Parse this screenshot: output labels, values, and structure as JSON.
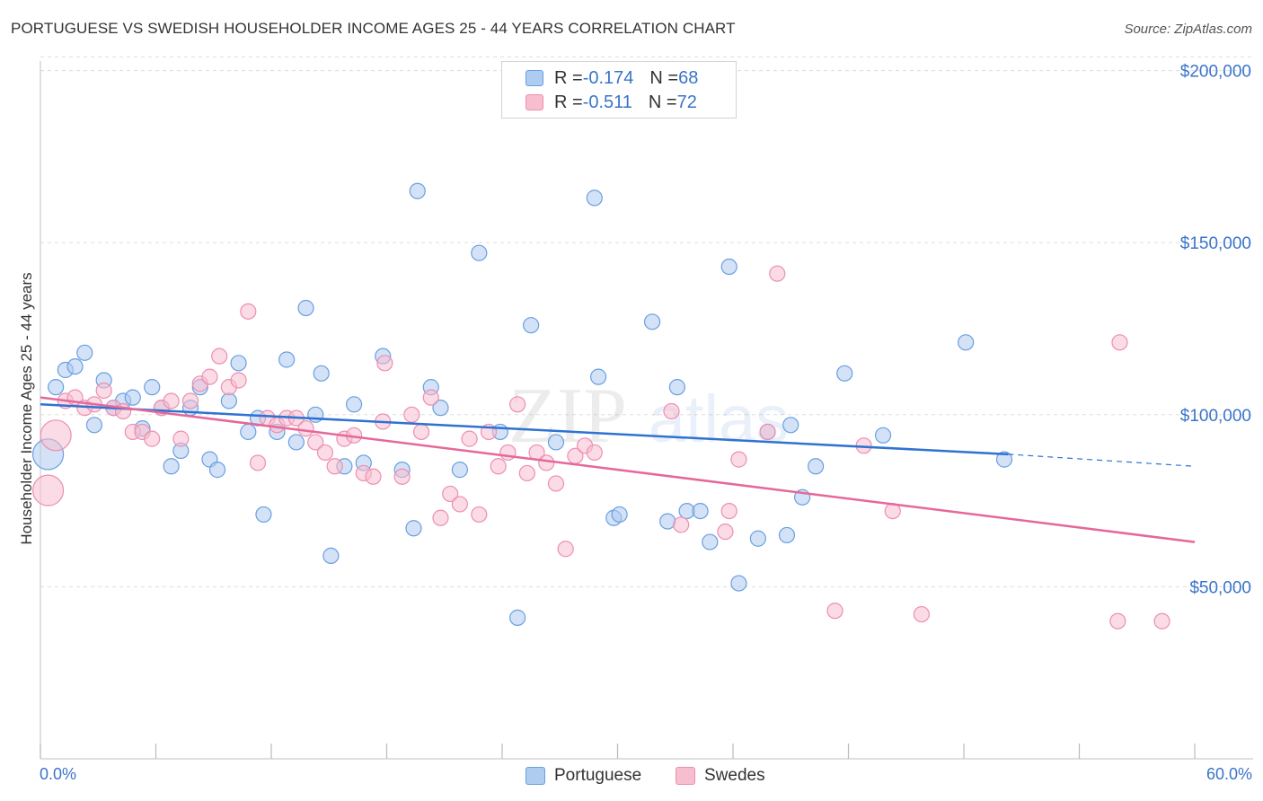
{
  "title": "PORTUGUESE VS SWEDISH HOUSEHOLDER INCOME AGES 25 - 44 YEARS CORRELATION CHART",
  "source": "Source: ZipAtlas.com",
  "watermark": {
    "zip": "ZIP",
    "atlas": "atlas"
  },
  "legend_top": {
    "rows": [
      {
        "r_label": "R = ",
        "r_value": "-0.174",
        "n_label": "N = ",
        "n_value": "68"
      },
      {
        "r_label": "R = ",
        "r_value": "-0.511",
        "n_label": "N = ",
        "n_value": "72"
      }
    ]
  },
  "colors": {
    "portuguese_fill": "#aecbf0",
    "portuguese_stroke": "#6a9fe0",
    "portuguese_line": "#2f72d2",
    "swedes_fill": "#f7bed0",
    "swedes_stroke": "#ec8fb0",
    "swedes_line": "#e5689a",
    "axis_label": "#3a74c9",
    "grid": "#dddddd"
  },
  "chart_data": {
    "type": "scatter",
    "title": "PORTUGUESE VS SWEDISH HOUSEHOLDER INCOME AGES 25 - 44 YEARS CORRELATION CHART",
    "xlabel": "",
    "ylabel": "Householder Income Ages 25 - 44 years",
    "xlim": [
      0,
      60
    ],
    "ylim": [
      0,
      205000
    ],
    "x_tick_labels": [
      "0.0%",
      "60.0%"
    ],
    "y_ticks": [
      50000,
      100000,
      150000,
      200000
    ],
    "y_tick_labels": [
      "$50,000",
      "$100,000",
      "$150,000",
      "$200,000"
    ],
    "grid": true,
    "legend_position": "bottom",
    "series": [
      {
        "name": "Portuguese",
        "r": -0.174,
        "n": 68,
        "trend": {
          "x0": 0,
          "y0": 103000,
          "x1": 50.3,
          "y1": 88500,
          "dash_to_x": 60,
          "dash_to_y": 85000
        },
        "points": [
          [
            0.4,
            88500,
            "big"
          ],
          [
            0.8,
            108000
          ],
          [
            1.3,
            113000
          ],
          [
            1.8,
            114000
          ],
          [
            2.3,
            118000
          ],
          [
            2.8,
            97000
          ],
          [
            3.3,
            110000
          ],
          [
            3.8,
            102000
          ],
          [
            4.3,
            104000
          ],
          [
            4.8,
            105000
          ],
          [
            5.3,
            96000
          ],
          [
            5.8,
            108000
          ],
          [
            6.3,
            102000
          ],
          [
            6.8,
            85000
          ],
          [
            7.3,
            89500
          ],
          [
            7.8,
            102000
          ],
          [
            8.3,
            108000
          ],
          [
            8.8,
            87000
          ],
          [
            9.2,
            84000
          ],
          [
            9.8,
            104000
          ],
          [
            10.3,
            115000
          ],
          [
            10.8,
            95000
          ],
          [
            11.3,
            99000
          ],
          [
            11.6,
            71000
          ],
          [
            12.3,
            95000
          ],
          [
            12.8,
            116000
          ],
          [
            13.3,
            92000
          ],
          [
            13.8,
            131000
          ],
          [
            14.3,
            100000
          ],
          [
            14.6,
            112000
          ],
          [
            15.1,
            59000
          ],
          [
            15.8,
            85000
          ],
          [
            16.3,
            103000
          ],
          [
            16.8,
            86000
          ],
          [
            17.8,
            117000
          ],
          [
            18.8,
            84000
          ],
          [
            19.4,
            67000
          ],
          [
            19.6,
            165000
          ],
          [
            20.3,
            108000
          ],
          [
            20.8,
            102000
          ],
          [
            21.8,
            84000
          ],
          [
            22.8,
            147000
          ],
          [
            23.9,
            95000
          ],
          [
            24.8,
            41000
          ],
          [
            25.5,
            126000
          ],
          [
            26.8,
            92000
          ],
          [
            28.8,
            163000
          ],
          [
            29.0,
            111000
          ],
          [
            29.8,
            70000
          ],
          [
            30.1,
            71000
          ],
          [
            31.8,
            127000
          ],
          [
            32.6,
            69000
          ],
          [
            33.1,
            108000
          ],
          [
            33.6,
            72000
          ],
          [
            34.3,
            72000
          ],
          [
            34.8,
            63000
          ],
          [
            35.8,
            143000
          ],
          [
            36.3,
            51000
          ],
          [
            37.3,
            64000
          ],
          [
            37.8,
            95000
          ],
          [
            38.8,
            65000
          ],
          [
            39.0,
            97000
          ],
          [
            39.6,
            76000
          ],
          [
            40.3,
            85000
          ],
          [
            41.8,
            112000
          ],
          [
            43.8,
            94000
          ],
          [
            48.1,
            121000
          ],
          [
            50.1,
            87000
          ]
        ]
      },
      {
        "name": "Swedes",
        "r": -0.511,
        "n": 72,
        "trend": {
          "x0": 0,
          "y0": 105000,
          "x1": 60,
          "y1": 63000
        },
        "points": [
          [
            0.4,
            78000,
            "big"
          ],
          [
            0.8,
            94000,
            "big"
          ],
          [
            1.3,
            104000
          ],
          [
            1.8,
            105000
          ],
          [
            2.3,
            102000
          ],
          [
            2.8,
            103000
          ],
          [
            3.3,
            107000
          ],
          [
            3.8,
            102000
          ],
          [
            4.3,
            101000
          ],
          [
            4.8,
            95000
          ],
          [
            5.3,
            95000
          ],
          [
            5.8,
            93000
          ],
          [
            6.3,
            102000
          ],
          [
            6.8,
            104000
          ],
          [
            7.3,
            93000
          ],
          [
            7.8,
            104000
          ],
          [
            8.3,
            109000
          ],
          [
            8.8,
            111000
          ],
          [
            9.3,
            117000
          ],
          [
            9.8,
            108000
          ],
          [
            10.3,
            110000
          ],
          [
            10.8,
            130000
          ],
          [
            11.3,
            86000
          ],
          [
            11.8,
            99000
          ],
          [
            12.3,
            97000
          ],
          [
            12.8,
            99000
          ],
          [
            13.3,
            99000
          ],
          [
            13.8,
            96000
          ],
          [
            14.3,
            92000
          ],
          [
            14.8,
            89000
          ],
          [
            15.3,
            85000
          ],
          [
            15.8,
            93000
          ],
          [
            16.3,
            94000
          ],
          [
            16.8,
            83000
          ],
          [
            17.3,
            82000
          ],
          [
            17.8,
            98000
          ],
          [
            17.9,
            115000
          ],
          [
            18.8,
            82000
          ],
          [
            19.3,
            100000
          ],
          [
            19.8,
            95000
          ],
          [
            20.3,
            105000
          ],
          [
            20.8,
            70000
          ],
          [
            21.3,
            77000
          ],
          [
            21.8,
            74000
          ],
          [
            22.3,
            93000
          ],
          [
            22.8,
            71000
          ],
          [
            23.3,
            95000
          ],
          [
            23.8,
            85000
          ],
          [
            24.3,
            89000
          ],
          [
            24.8,
            103000
          ],
          [
            25.3,
            83000
          ],
          [
            25.8,
            89000
          ],
          [
            26.3,
            86000
          ],
          [
            26.8,
            80000
          ],
          [
            27.3,
            61000
          ],
          [
            27.8,
            88000
          ],
          [
            28.3,
            91000
          ],
          [
            28.8,
            89000
          ],
          [
            32.8,
            101000
          ],
          [
            33.3,
            68000
          ],
          [
            35.6,
            66000
          ],
          [
            35.8,
            72000
          ],
          [
            36.3,
            87000
          ],
          [
            37.8,
            95000
          ],
          [
            38.3,
            141000
          ],
          [
            41.3,
            43000
          ],
          [
            42.8,
            91000
          ],
          [
            44.3,
            72000
          ],
          [
            45.8,
            42000
          ],
          [
            56.0,
            40000
          ],
          [
            56.1,
            121000
          ],
          [
            58.3,
            40000
          ]
        ]
      }
    ]
  },
  "bottom_legend": [
    {
      "label": "Portuguese"
    },
    {
      "label": "Swedes"
    }
  ]
}
